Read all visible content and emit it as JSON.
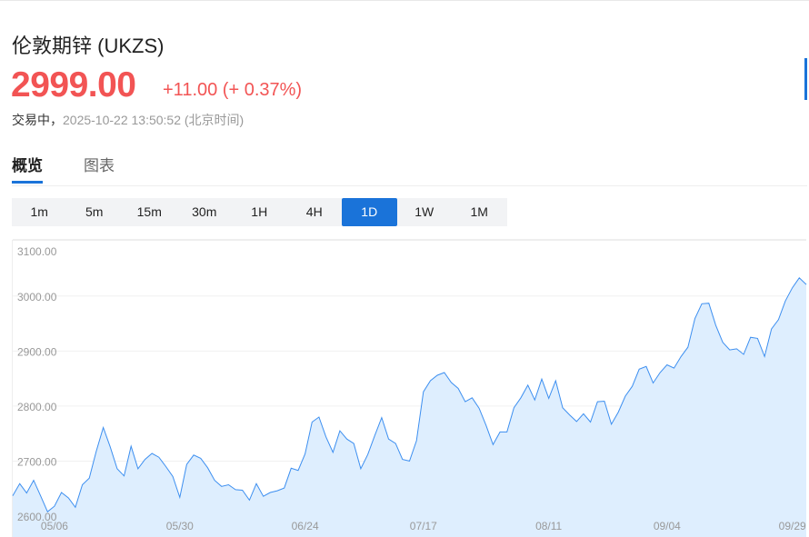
{
  "header": {
    "title": "伦敦期锌 (UKZS)",
    "price": "2999.00",
    "change": "+11.00 (+ 0.37%)",
    "status": "交易中，",
    "timestamp": "2025-10-22 13:50:52 (北京时间)"
  },
  "tabs": [
    {
      "label": "概览",
      "active": true
    },
    {
      "label": "图表",
      "active": false
    }
  ],
  "periods": [
    {
      "label": "1m"
    },
    {
      "label": "5m"
    },
    {
      "label": "15m"
    },
    {
      "label": "30m"
    },
    {
      "label": "1H"
    },
    {
      "label": "4H"
    },
    {
      "label": "1D",
      "active": true
    },
    {
      "label": "1W"
    },
    {
      "label": "1M"
    }
  ],
  "colors": {
    "accent": "#1a73d9",
    "up": "#f25454",
    "line": "#3d8ff0",
    "fill": "#deeefe"
  },
  "chart_data": {
    "type": "area",
    "ylim": [
      2600,
      3100
    ],
    "yticks": [
      "3100.00",
      "3000.00",
      "2900.00",
      "2800.00",
      "2700.00",
      "2600.00"
    ],
    "xticks": [
      {
        "label": "05/06",
        "index": 6
      },
      {
        "label": "05/30",
        "index": 24
      },
      {
        "label": "06/24",
        "index": 42
      },
      {
        "label": "07/17",
        "index": 59
      },
      {
        "label": "08/11",
        "index": 77
      },
      {
        "label": "09/04",
        "index": 94
      },
      {
        "label": "09/29",
        "index": 112
      }
    ],
    "grid": true,
    "values": [
      2637,
      2659,
      2642,
      2665,
      2637,
      2608,
      2618,
      2643,
      2633,
      2616,
      2657,
      2669,
      2718,
      2761,
      2726,
      2686,
      2673,
      2727,
      2686,
      2703,
      2714,
      2707,
      2690,
      2672,
      2634,
      2694,
      2711,
      2705,
      2688,
      2665,
      2654,
      2657,
      2648,
      2647,
      2629,
      2659,
      2636,
      2643,
      2646,
      2651,
      2687,
      2683,
      2713,
      2771,
      2780,
      2744,
      2716,
      2755,
      2740,
      2732,
      2686,
      2712,
      2746,
      2779,
      2740,
      2732,
      2703,
      2700,
      2737,
      2826,
      2846,
      2856,
      2861,
      2843,
      2832,
      2808,
      2815,
      2796,
      2765,
      2730,
      2753,
      2753,
      2797,
      2815,
      2838,
      2811,
      2849,
      2814,
      2846,
      2797,
      2784,
      2772,
      2786,
      2771,
      2808,
      2809,
      2767,
      2789,
      2818,
      2836,
      2867,
      2872,
      2842,
      2861,
      2875,
      2869,
      2890,
      2907,
      2959,
      2986,
      2987,
      2947,
      2916,
      2902,
      2904,
      2894,
      2925,
      2923,
      2890,
      2940,
      2957,
      2991,
      3015,
      3033,
      3021
    ]
  }
}
